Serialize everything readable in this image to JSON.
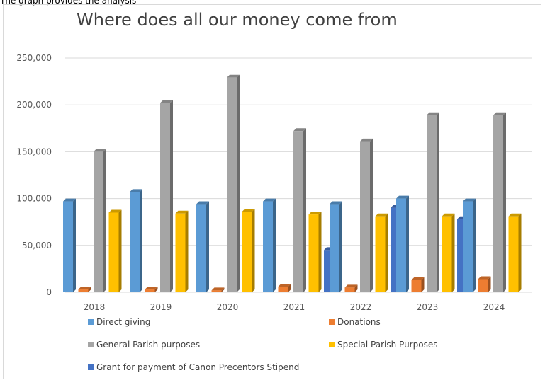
{
  "caption": "The graph provides the analysis",
  "chart_data": {
    "type": "bar",
    "title": "Where does all our money come from",
    "xlabel": "",
    "ylabel": "",
    "ylim": [
      0,
      250000
    ],
    "yticks": [
      "0",
      "50,000",
      "100,000",
      "150,000",
      "200,000",
      "250,000"
    ],
    "ytick_values": [
      0,
      50000,
      100000,
      150000,
      200000,
      250000
    ],
    "grid": true,
    "legend_position": "bottom",
    "categories": [
      "2018",
      "2019",
      "2020",
      "2021",
      "2022",
      "2023",
      "2024"
    ],
    "series": [
      {
        "name": "Direct giving",
        "color": "#5b9bd5",
        "values": [
          97000,
          107000,
          94000,
          97000,
          94000,
          100000,
          97000
        ]
      },
      {
        "name": "Donations",
        "color": "#ed7d31",
        "values": [
          3000,
          3000,
          2000,
          6000,
          5000,
          13000,
          14000
        ]
      },
      {
        "name": "General Parish purposes",
        "color": "#a5a5a5",
        "values": [
          150000,
          202000,
          229000,
          172000,
          161000,
          189000,
          189000
        ]
      },
      {
        "name": "Special Parish Purposes",
        "color": "#ffc000",
        "values": [
          85000,
          84000,
          86000,
          83000,
          81000,
          81000,
          81000
        ]
      },
      {
        "name": "Grant for payment of Canon Precentors Stipend",
        "color": "#4472c4",
        "values": [
          null,
          null,
          null,
          45000,
          90000,
          78000,
          null
        ]
      }
    ]
  }
}
